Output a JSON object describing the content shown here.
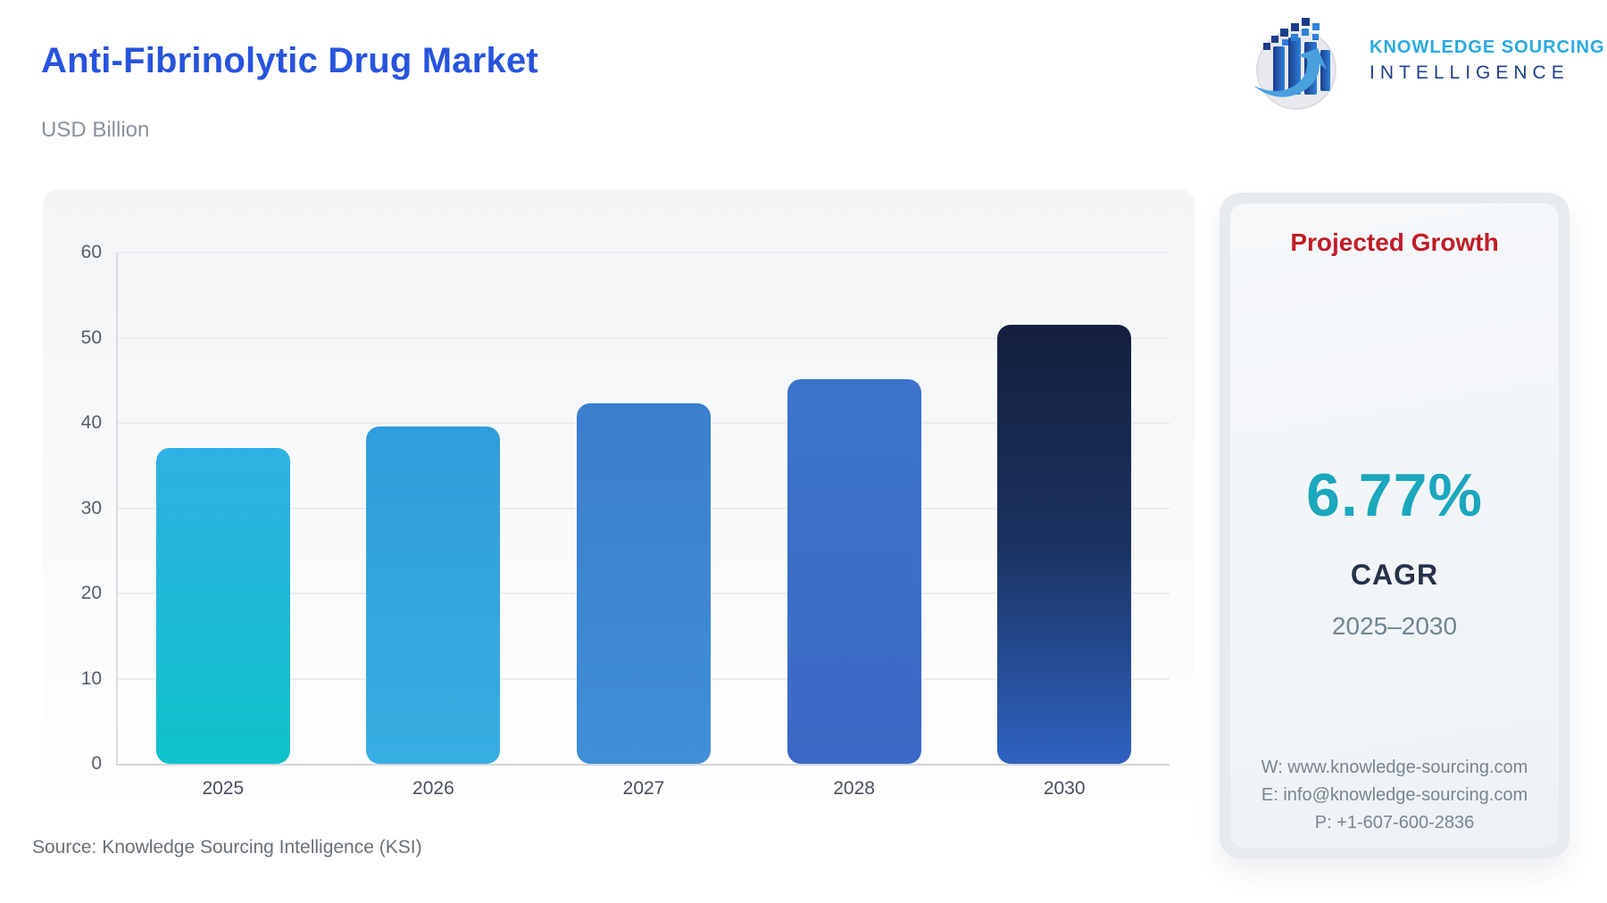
{
  "header": {
    "title": "Anti-Fibrinolytic Drug Market",
    "subtitle": "USD Billion",
    "logo": {
      "line1": "KNOWLEDGE SOURCING",
      "line2": "INTELLIGENCE"
    }
  },
  "chart_data": {
    "type": "bar",
    "title": "Anti-Fibrinolytic Drug Market",
    "xlabel": "",
    "ylabel": "USD Billion",
    "categories": [
      "2025",
      "2026",
      "2027",
      "2028",
      "2030"
    ],
    "values": [
      37.1,
      39.6,
      42.3,
      45.1,
      51.5
    ],
    "ylim": [
      0,
      60
    ],
    "yticks": [
      0,
      10,
      20,
      30,
      40,
      50,
      60
    ],
    "grid": true,
    "legend": "none",
    "bar_gradients": [
      [
        "#2fb1e3",
        "#0ec2ca"
      ],
      [
        "#2f9dda",
        "#37aee2"
      ],
      [
        "#3a7ecd",
        "#418ed7"
      ],
      [
        "#3d74cb",
        "#3a68c4"
      ],
      [
        "#141f3c",
        "#1b3261",
        "#2f62c1"
      ]
    ]
  },
  "growth_panel": {
    "title": "Projected Growth",
    "value": "6.77%",
    "metric": "CAGR",
    "period": "2025–2030",
    "contact": {
      "website": "W: www.knowledge-sourcing.com",
      "email": "E: info@knowledge-sourcing.com",
      "phone": "P: +1-607-600-2836"
    }
  },
  "footer": {
    "source": "Source: Knowledge Sourcing Intelligence (KSI)"
  },
  "colors": {
    "title_blue": "#2754de",
    "logo_cyan": "#2aa9e0",
    "logo_navy": "#21418c",
    "growth_red": "#c01d28",
    "cagr_teal": "#1ba7bd",
    "metric_navy": "#273149",
    "axis_text": "#565e6a",
    "gridline": "#ebecef"
  }
}
